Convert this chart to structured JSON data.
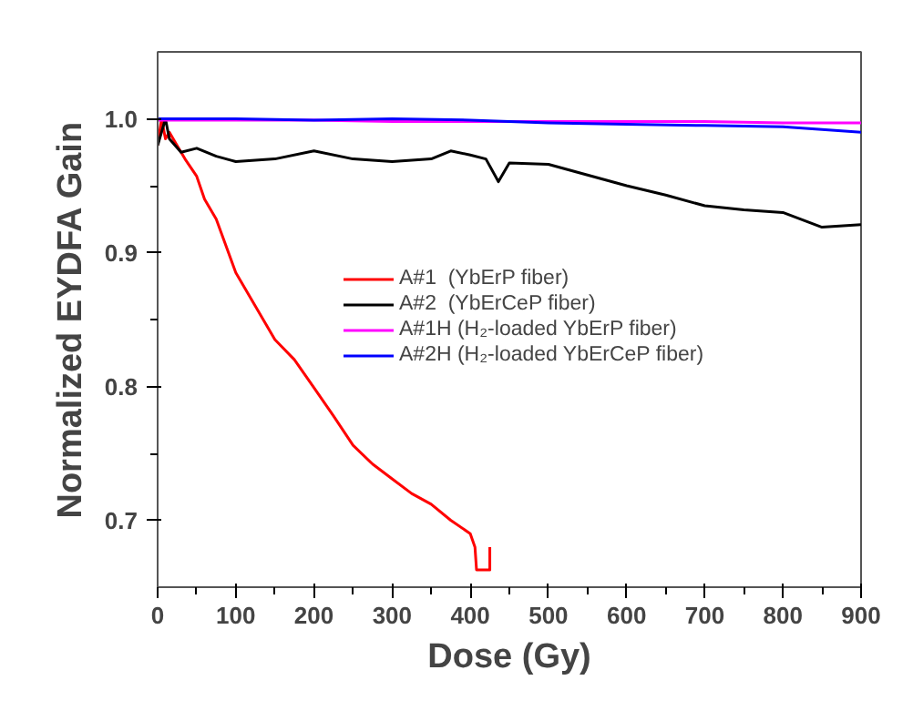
{
  "chart_data": {
    "type": "line",
    "xlabel": "Dose (Gy)",
    "ylabel": "Normalized EYDFA Gain",
    "xlim": [
      0,
      900
    ],
    "ylim": [
      0.65,
      1.05
    ],
    "xticks": [
      0,
      100,
      200,
      300,
      400,
      500,
      600,
      700,
      800,
      900
    ],
    "yticks": [
      0.7,
      0.8,
      0.9,
      {
        "value": 1.0,
        "label": "1.0"
      }
    ],
    "grid": false,
    "legend": "right",
    "line_style": "solid",
    "marker": "none",
    "series": [
      {
        "name": "A#1  (YbErP fiber)",
        "color": "#ff0000",
        "x": [
          0,
          5,
          10,
          15,
          25,
          35,
          50,
          60,
          75,
          100,
          125,
          150,
          175,
          200,
          225,
          250,
          275,
          300,
          325,
          350,
          375,
          400,
          406,
          408,
          425,
          425
        ],
        "values": [
          0.98,
          1.0,
          0.985,
          0.99,
          0.98,
          0.97,
          0.957,
          0.94,
          0.925,
          0.885,
          0.86,
          0.835,
          0.82,
          0.799,
          0.778,
          0.756,
          0.742,
          0.731,
          0.72,
          0.712,
          0.7,
          0.69,
          0.68,
          0.663,
          0.663,
          0.68
        ]
      },
      {
        "name": "A#2  (YbErCeP fiber)",
        "color": "#000000",
        "x": [
          0,
          10,
          15,
          30,
          50,
          75,
          100,
          150,
          200,
          250,
          300,
          350,
          375,
          400,
          420,
          436,
          450,
          500,
          550,
          600,
          650,
          700,
          750,
          800,
          850,
          900
        ],
        "values": [
          0.98,
          1.0,
          0.985,
          0.975,
          0.978,
          0.972,
          0.968,
          0.97,
          0.976,
          0.97,
          0.968,
          0.97,
          0.976,
          0.973,
          0.97,
          0.953,
          0.967,
          0.966,
          0.958,
          0.95,
          0.943,
          0.935,
          0.932,
          0.93,
          0.919,
          0.921
        ]
      },
      {
        "name": "A#1H (H₂-loaded YbErP fiber)",
        "color": "#ff00ff",
        "x": [
          0,
          100,
          200,
          300,
          400,
          500,
          600,
          700,
          800,
          900
        ],
        "values": [
          0.999,
          0.999,
          0.999,
          0.998,
          0.998,
          0.998,
          0.998,
          0.998,
          0.997,
          0.997
        ]
      },
      {
        "name": "A#2H (H₂-loaded YbErCeP fiber)",
        "color": "#0000ff",
        "x": [
          0,
          100,
          200,
          300,
          400,
          500,
          600,
          700,
          800,
          850,
          900
        ],
        "values": [
          1.0,
          1.0,
          0.999,
          1.0,
          0.999,
          0.997,
          0.996,
          0.995,
          0.994,
          0.992,
          0.99
        ]
      }
    ]
  }
}
